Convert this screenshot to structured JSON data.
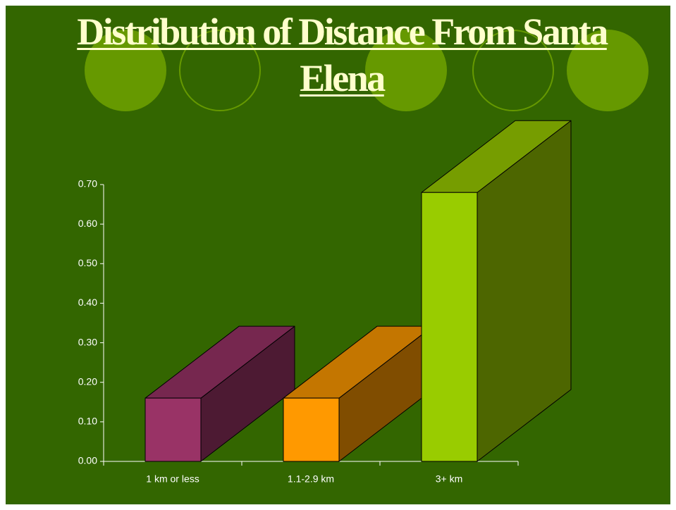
{
  "chart_data": {
    "type": "bar3d",
    "title": "Distribution of Distance From Santa Elena",
    "categories": [
      "1 km or less",
      "1.1-2.9 km",
      "3+ km"
    ],
    "values": [
      0.16,
      0.16,
      0.68
    ],
    "colors": [
      "#993366",
      "#ff9900",
      "#99cc00"
    ],
    "ylim": [
      0,
      0.7
    ],
    "yticks": [
      {
        "value": 0,
        "label": "0.00"
      },
      {
        "value": 0.1,
        "label": "0.10"
      },
      {
        "value": 0.2,
        "label": "0.20"
      },
      {
        "value": 0.3,
        "label": "0.30"
      },
      {
        "value": 0.4,
        "label": "0.40"
      },
      {
        "value": 0.5,
        "label": "0.50"
      },
      {
        "value": 0.6,
        "label": "0.60"
      },
      {
        "value": 0.7,
        "label": "0.70"
      }
    ],
    "grid": false
  }
}
